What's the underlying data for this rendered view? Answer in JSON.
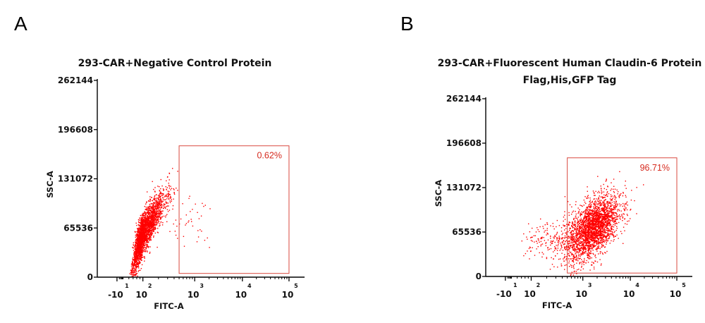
{
  "chart_data": [
    {
      "type": "scatter",
      "panel_label": "A",
      "title_lines": [
        "293-CAR+Negative Control Protein"
      ],
      "xlabel": "FITC-A",
      "ylabel": "SSC-A",
      "x_scale": "biexponential",
      "x_ticks": [
        {
          "base": "-10",
          "exp": "1"
        },
        {
          "base": "10",
          "exp": "2"
        },
        {
          "base": "10",
          "exp": "3"
        },
        {
          "base": "10",
          "exp": "4"
        },
        {
          "base": "10",
          "exp": "5"
        }
      ],
      "y_ticks": [
        "0",
        "65536",
        "131072",
        "196608",
        "262144"
      ],
      "ylim": [
        0,
        262144
      ],
      "point_color": "#ff0000",
      "gate": {
        "x_min": 500,
        "x_max": 100000,
        "y_min": 5000,
        "y_max": 175000,
        "label": "0.62%"
      },
      "populations": [
        {
          "count": 2600,
          "log_x_center": 2.0,
          "log_x_spread": 0.2,
          "y_center": 60000,
          "y_spread": 13000,
          "y_slope": 42000
        },
        {
          "count": 45,
          "log_x_center": 2.85,
          "log_x_spread": 0.22,
          "y_center": 85000,
          "y_spread": 20000,
          "y_slope": 0
        }
      ]
    },
    {
      "type": "scatter",
      "panel_label": "B",
      "title_lines": [
        "293-CAR+Fluorescent Human Claudin-6 Protein",
        "Flag,His,GFP Tag"
      ],
      "xlabel": "FITC-A",
      "ylabel": "SSC-A",
      "x_scale": "biexponential",
      "x_ticks": [
        {
          "base": "-10",
          "exp": "1"
        },
        {
          "base": "10",
          "exp": "2"
        },
        {
          "base": "10",
          "exp": "3"
        },
        {
          "base": "10",
          "exp": "4"
        },
        {
          "base": "10",
          "exp": "5"
        }
      ],
      "y_ticks": [
        "0",
        "65536",
        "131072",
        "196608",
        "262144"
      ],
      "ylim": [
        0,
        262144
      ],
      "point_color": "#ff0000",
      "gate": {
        "x_min": 500,
        "x_max": 100000,
        "y_min": 5000,
        "y_max": 175000,
        "label": "96.71%"
      },
      "populations": [
        {
          "count": 2700,
          "log_x_center": 3.2,
          "log_x_spread": 0.28,
          "y_center": 72000,
          "y_spread": 20000,
          "y_slope": 25000
        },
        {
          "count": 140,
          "log_x_center": 2.3,
          "log_x_spread": 0.25,
          "y_center": 55000,
          "y_spread": 12000,
          "y_slope": 0
        }
      ]
    }
  ]
}
